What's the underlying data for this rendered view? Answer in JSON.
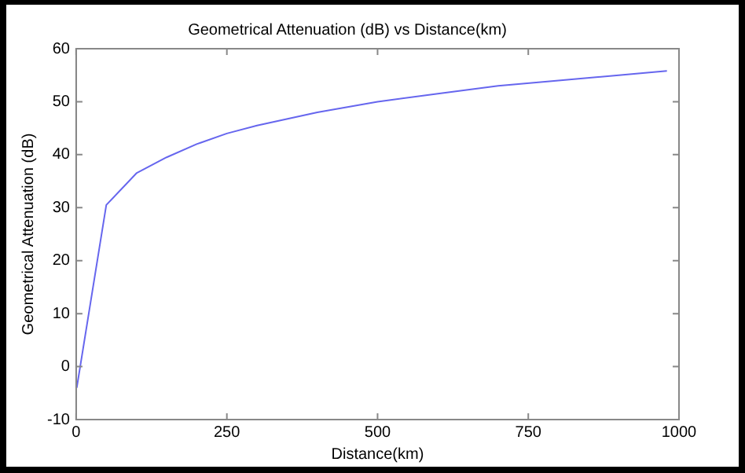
{
  "chart_data": {
    "type": "line",
    "title": "Geometrical Attenuation (dB) vs Distance(km)",
    "xlabel": "Distance(km)",
    "ylabel": "Geometrical Attenuation (dB)",
    "x": [
      1,
      50,
      100,
      150,
      200,
      250,
      300,
      400,
      500,
      600,
      700,
      800,
      900,
      980
    ],
    "series": [
      {
        "color": "#6666ee",
        "values": [
          -4,
          30.5,
          36.5,
          39.5,
          42,
          44,
          45.5,
          48,
          50,
          51.5,
          53,
          54,
          55,
          55.8
        ]
      }
    ],
    "xlim": [
      0,
      1000
    ],
    "xticks": [
      0,
      250,
      500,
      750,
      1000
    ],
    "ylim": [
      -10,
      60
    ],
    "yticks": [
      -10,
      0,
      10,
      20,
      30,
      40,
      50,
      60
    ],
    "grid": false,
    "legend": false,
    "marker": "none",
    "line_style": "solid"
  }
}
